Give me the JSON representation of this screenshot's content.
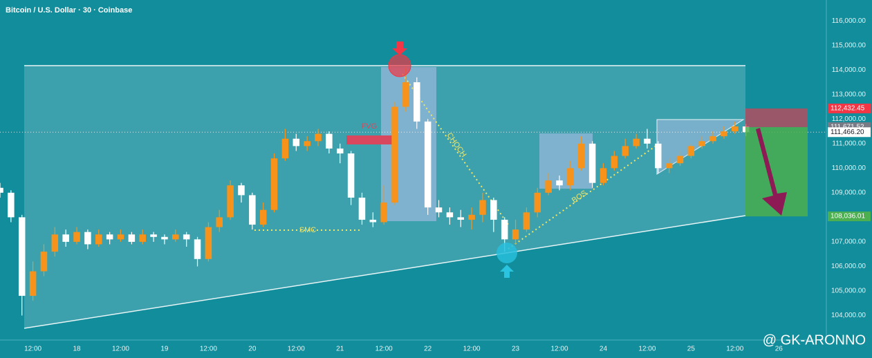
{
  "chart_data": {
    "type": "candlestick",
    "title": "Bitcoin / U.S. Dollar · 30 · Coinbase",
    "x": [
      3,
      6,
      9,
      12,
      15,
      18,
      21,
      24,
      27,
      30,
      33,
      36,
      39,
      42,
      45,
      48,
      51,
      54,
      57,
      60,
      63,
      66,
      69,
      72,
      75,
      78,
      81,
      84,
      87,
      90,
      93,
      96,
      99,
      102,
      105,
      108,
      111,
      114,
      117,
      120,
      123,
      126,
      129,
      132,
      135,
      138,
      141,
      144,
      147,
      150,
      153,
      156,
      159,
      162,
      165,
      168,
      171,
      174,
      177,
      180,
      183,
      186,
      189,
      192,
      195,
      198,
      201,
      204,
      207
    ],
    "open": [
      109200,
      109000,
      108000,
      104800,
      105800,
      106600,
      107300,
      107000,
      107400,
      106900,
      107300,
      107100,
      107300,
      107000,
      107300,
      107200,
      107100,
      107300,
      107100,
      106300,
      107600,
      108000,
      109300,
      108900,
      107700,
      108300,
      110400,
      111200,
      110900,
      111100,
      111400,
      110800,
      110600,
      108800,
      107900,
      107800,
      108600,
      112500,
      113500,
      111900,
      108400,
      108200,
      108000,
      107900,
      108100,
      108700,
      107900,
      107100,
      107500,
      108200,
      109000,
      109500,
      109300,
      110000,
      111000,
      109400,
      110000,
      110500,
      110900,
      111200,
      111000,
      110000,
      110200,
      110500,
      110900,
      111100,
      111300,
      111500,
      111700
    ],
    "high": [
      109400,
      109100,
      108100,
      106200,
      106900,
      107600,
      107500,
      107600,
      107500,
      107500,
      107400,
      107500,
      107400,
      107500,
      107400,
      107300,
      107500,
      107400,
      107200,
      107800,
      108300,
      109500,
      109400,
      109000,
      108600,
      110600,
      111600,
      111400,
      111300,
      111600,
      111500,
      111000,
      110700,
      109000,
      108200,
      109300,
      112700,
      114100,
      113700,
      112000,
      108700,
      108400,
      108300,
      108400,
      109000,
      108800,
      108000,
      107900,
      108400,
      109200,
      109800,
      109700,
      110300,
      111300,
      111100,
      110200,
      110700,
      111200,
      111400,
      111600,
      111100,
      110400,
      110700,
      111000,
      111300,
      111500,
      111700,
      111900,
      111800
    ],
    "low": [
      108800,
      107800,
      104000,
      104600,
      105600,
      106400,
      106800,
      106900,
      106700,
      106800,
      106900,
      107000,
      106900,
      106900,
      107000,
      106900,
      107000,
      106800,
      106000,
      106200,
      107400,
      107900,
      108600,
      107500,
      107600,
      108200,
      110300,
      110700,
      110700,
      110900,
      110600,
      110200,
      108500,
      107700,
      107600,
      107700,
      108500,
      112300,
      111600,
      108100,
      108000,
      107700,
      107600,
      107500,
      107800,
      107400,
      106600,
      106900,
      107400,
      108000,
      108900,
      109100,
      109100,
      109900,
      109200,
      109300,
      109900,
      110400,
      110800,
      110800,
      109800,
      109800,
      110100,
      110400,
      110800,
      111000,
      111200,
      111400,
      111300
    ],
    "close": [
      109000,
      108000,
      104800,
      105800,
      106600,
      107300,
      107000,
      107400,
      106900,
      107300,
      107100,
      107300,
      107000,
      107300,
      107200,
      107100,
      107300,
      107100,
      106300,
      107600,
      108000,
      109300,
      108900,
      107700,
      108300,
      110400,
      111200,
      110900,
      111100,
      111400,
      110800,
      110600,
      108800,
      107900,
      107800,
      108600,
      112500,
      113500,
      111900,
      108400,
      108200,
      108000,
      107900,
      108100,
      108700,
      107900,
      107100,
      107500,
      108200,
      109000,
      109500,
      109300,
      110000,
      111000,
      109400,
      110000,
      110500,
      110900,
      111200,
      111000,
      110000,
      110200,
      110500,
      110900,
      111100,
      111300,
      111500,
      111700,
      111466
    ],
    "up_color": "#f7931a",
    "down_color": "#ffffff",
    "xlim": [
      3,
      229
    ],
    "xticks": [
      {
        "value": 12,
        "label": "12:00"
      },
      {
        "value": 24,
        "label": "18"
      },
      {
        "value": 36,
        "label": "12:00"
      },
      {
        "value": 48,
        "label": "19"
      },
      {
        "value": 60,
        "label": "12:00"
      },
      {
        "value": 72,
        "label": "20"
      },
      {
        "value": 84,
        "label": "12:00"
      },
      {
        "value": 96,
        "label": "21"
      },
      {
        "value": 108,
        "label": "12:00"
      },
      {
        "value": 120,
        "label": "22"
      },
      {
        "value": 132,
        "label": "12:00"
      },
      {
        "value": 144,
        "label": "23"
      },
      {
        "value": 156,
        "label": "12:00"
      },
      {
        "value": 168,
        "label": "24"
      },
      {
        "value": 180,
        "label": "12:00"
      },
      {
        "value": 192,
        "label": "25"
      },
      {
        "value": 204,
        "label": "12:00"
      },
      {
        "value": 216,
        "label": "26"
      }
    ],
    "ylim": [
      103000,
      116850
    ],
    "yticks": [
      {
        "value": 104000,
        "label": "104,000.00"
      },
      {
        "value": 105000,
        "label": "105,000.00"
      },
      {
        "value": 106000,
        "label": "106,000.00"
      },
      {
        "value": 107000,
        "label": "107,000.00"
      },
      {
        "value": 108000,
        "label": "108,000.00"
      },
      {
        "value": 109000,
        "label": "109,000.00"
      },
      {
        "value": 110000,
        "label": "110,000.00"
      },
      {
        "value": 111000,
        "label": "111,000.00"
      },
      {
        "value": 112000,
        "label": "112,000.00"
      },
      {
        "value": 113000,
        "label": "113,000.00"
      },
      {
        "value": 114000,
        "label": "114,000.00"
      },
      {
        "value": 115000,
        "label": "115,000.00"
      },
      {
        "value": 116000,
        "label": "116,000.00"
      }
    ],
    "price_labels": [
      {
        "value": 112432.45,
        "label": "112,432.45",
        "color": "#f23645"
      },
      {
        "value": 111671.52,
        "label": "111,671.52",
        "color": "#787b86"
      },
      {
        "value": 111466.2,
        "label": "111,466.20",
        "color": "#ffffff"
      },
      {
        "value": 108036.01,
        "label": "108,036.01",
        "color": "#4caf50"
      }
    ],
    "annotations": [
      "FVG",
      "SMC",
      "CHOCH",
      "BOS"
    ],
    "watermark": "@ GK-ARONNO"
  }
}
